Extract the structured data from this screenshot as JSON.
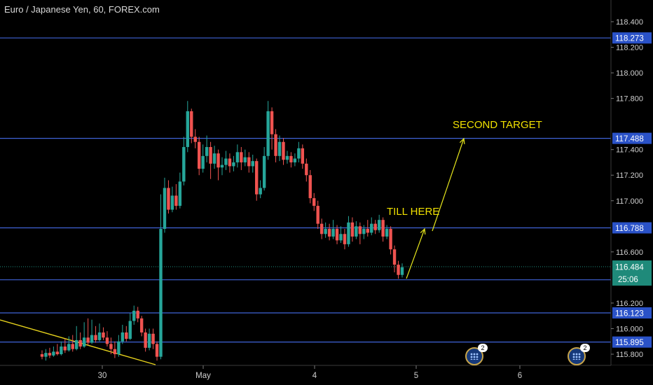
{
  "header": {
    "title": "Euro / Japanese Yen, 60, FOREX.com"
  },
  "chart_data": {
    "type": "candlestick",
    "ylim": [
      115.72,
      118.64
    ],
    "price_ticks": [
      "118.400",
      "118.200",
      "118.000",
      "117.800",
      "117.400",
      "117.200",
      "117.000",
      "116.600",
      "116.200",
      "116.000",
      "115.800"
    ],
    "x_ticks": [
      "30",
      "May",
      "4",
      "5",
      "6"
    ],
    "levels": [
      {
        "value": 118.273,
        "label": "118.273"
      },
      {
        "value": 117.488,
        "label": "117.488"
      },
      {
        "value": 116.788,
        "label": "116.788"
      },
      {
        "value": 116.382,
        "label": "116.382"
      },
      {
        "value": 116.123,
        "label": "116.123"
      },
      {
        "value": 115.895,
        "label": "115.895"
      }
    ],
    "current_price": {
      "value": 116.484,
      "label": "116.484",
      "countdown": "25:06"
    },
    "annotations": [
      {
        "text": "TILL HERE"
      },
      {
        "text": "SECOND TARGET"
      }
    ],
    "event_badges": [
      {
        "count": "2"
      },
      {
        "count": "2"
      }
    ],
    "candles": [
      [
        115.8,
        115.78,
        115.83,
        115.76
      ],
      [
        115.78,
        115.81,
        115.84,
        115.75
      ],
      [
        115.81,
        115.79,
        115.85,
        115.77
      ],
      [
        115.79,
        115.82,
        115.86,
        115.78
      ],
      [
        115.82,
        115.8,
        115.88,
        115.79
      ],
      [
        115.8,
        115.86,
        115.9,
        115.79
      ],
      [
        115.86,
        115.83,
        115.92,
        115.81
      ],
      [
        115.83,
        115.88,
        115.94,
        115.82
      ],
      [
        115.88,
        115.84,
        115.95,
        115.82
      ],
      [
        115.84,
        115.91,
        116.02,
        115.83
      ],
      [
        115.91,
        115.86,
        115.97,
        115.84
      ],
      [
        115.86,
        115.93,
        116.05,
        115.85
      ],
      [
        115.93,
        115.89,
        116.08,
        115.87
      ],
      [
        115.89,
        115.95,
        116.07,
        115.88
      ],
      [
        115.95,
        115.91,
        116.02,
        115.89
      ],
      [
        115.91,
        115.97,
        116.04,
        115.9
      ],
      [
        115.97,
        115.93,
        116.01,
        115.91
      ],
      [
        115.93,
        115.88,
        115.98,
        115.86
      ],
      [
        115.88,
        115.84,
        115.93,
        115.8
      ],
      [
        115.84,
        115.8,
        115.9,
        115.77
      ],
      [
        115.8,
        115.9,
        115.95,
        115.78
      ],
      [
        115.9,
        115.97,
        116.03,
        115.88
      ],
      [
        115.97,
        115.92,
        116.02,
        115.9
      ],
      [
        115.92,
        116.06,
        116.12,
        115.91
      ],
      [
        116.06,
        116.14,
        116.18,
        116.03
      ],
      [
        116.14,
        116.08,
        116.17,
        116.05
      ],
      [
        116.08,
        115.97,
        116.1,
        115.94
      ],
      [
        115.97,
        115.85,
        116.0,
        115.82
      ],
      [
        115.85,
        115.96,
        116.0,
        115.83
      ],
      [
        115.96,
        115.88,
        116.0,
        115.84
      ],
      [
        115.88,
        115.78,
        115.9,
        115.75
      ],
      [
        115.78,
        116.78,
        117.05,
        115.76
      ],
      [
        116.78,
        117.1,
        117.18,
        116.75
      ],
      [
        117.1,
        116.93,
        117.16,
        116.9
      ],
      [
        116.93,
        117.04,
        117.11,
        116.91
      ],
      [
        117.04,
        116.96,
        117.13,
        116.93
      ],
      [
        116.96,
        117.15,
        117.22,
        116.94
      ],
      [
        117.15,
        117.42,
        117.5,
        117.12
      ],
      [
        117.42,
        117.7,
        117.78,
        117.38
      ],
      [
        117.7,
        117.5,
        117.72,
        117.45
      ],
      [
        117.5,
        117.46,
        117.56,
        117.41
      ],
      [
        117.46,
        117.25,
        117.5,
        117.2
      ],
      [
        117.25,
        117.35,
        117.44,
        117.22
      ],
      [
        117.35,
        117.42,
        117.51,
        117.3
      ],
      [
        117.42,
        117.29,
        117.46,
        117.17
      ],
      [
        117.29,
        117.37,
        117.43,
        117.25
      ],
      [
        117.37,
        117.26,
        117.4,
        117.16
      ],
      [
        117.26,
        117.28,
        117.34,
        117.2
      ],
      [
        117.28,
        117.33,
        117.39,
        117.24
      ],
      [
        117.33,
        117.27,
        117.37,
        117.22
      ],
      [
        117.27,
        117.3,
        117.35,
        117.23
      ],
      [
        117.3,
        117.38,
        117.44,
        117.26
      ],
      [
        117.38,
        117.3,
        117.42,
        117.24
      ],
      [
        117.3,
        117.34,
        117.4,
        117.27
      ],
      [
        117.34,
        117.27,
        117.38,
        117.22
      ],
      [
        117.27,
        117.31,
        117.36,
        117.22
      ],
      [
        117.31,
        117.05,
        117.33,
        117.0
      ],
      [
        117.05,
        117.1,
        117.16,
        117.02
      ],
      [
        117.1,
        117.35,
        117.42,
        117.08
      ],
      [
        117.35,
        117.7,
        117.78,
        117.32
      ],
      [
        117.7,
        117.52,
        117.73,
        117.4
      ],
      [
        117.52,
        117.35,
        117.56,
        117.3
      ],
      [
        117.35,
        117.46,
        117.51,
        117.31
      ],
      [
        117.46,
        117.32,
        117.49,
        117.28
      ],
      [
        117.32,
        117.35,
        117.39,
        117.29
      ],
      [
        117.35,
        117.3,
        117.38,
        117.26
      ],
      [
        117.3,
        117.33,
        117.37,
        117.27
      ],
      [
        117.33,
        117.41,
        117.46,
        117.3
      ],
      [
        117.41,
        117.29,
        117.44,
        117.25
      ],
      [
        117.29,
        117.2,
        117.33,
        117.15
      ],
      [
        117.2,
        117.02,
        117.24,
        116.98
      ],
      [
        117.02,
        116.96,
        117.06,
        116.92
      ],
      [
        116.96,
        116.82,
        117.0,
        116.78
      ],
      [
        116.82,
        116.74,
        116.86,
        116.7
      ],
      [
        116.74,
        116.78,
        116.83,
        116.71
      ],
      [
        116.78,
        116.72,
        116.82,
        116.69
      ],
      [
        116.72,
        116.78,
        116.85,
        116.7
      ],
      [
        116.78,
        116.69,
        116.81,
        116.66
      ],
      [
        116.69,
        116.74,
        116.8,
        116.67
      ],
      [
        116.74,
        116.66,
        116.78,
        116.62
      ],
      [
        116.66,
        116.83,
        116.88,
        116.64
      ],
      [
        116.83,
        116.72,
        116.87,
        116.68
      ],
      [
        116.72,
        116.8,
        116.84,
        116.7
      ],
      [
        116.8,
        116.74,
        116.83,
        116.66
      ],
      [
        116.74,
        116.78,
        116.81,
        116.7
      ],
      [
        116.78,
        116.75,
        116.85,
        116.72
      ],
      [
        116.75,
        116.82,
        116.87,
        116.73
      ],
      [
        116.82,
        116.77,
        116.85,
        116.74
      ],
      [
        116.77,
        116.85,
        116.89,
        116.75
      ],
      [
        116.85,
        116.72,
        116.87,
        116.68
      ],
      [
        116.72,
        116.78,
        116.81,
        116.7
      ],
      [
        116.78,
        116.62,
        116.8,
        116.58
      ],
      [
        116.62,
        116.5,
        116.65,
        116.44
      ],
      [
        116.5,
        116.42,
        116.53,
        116.39
      ],
      [
        116.42,
        116.48,
        116.51,
        116.4
      ]
    ]
  }
}
